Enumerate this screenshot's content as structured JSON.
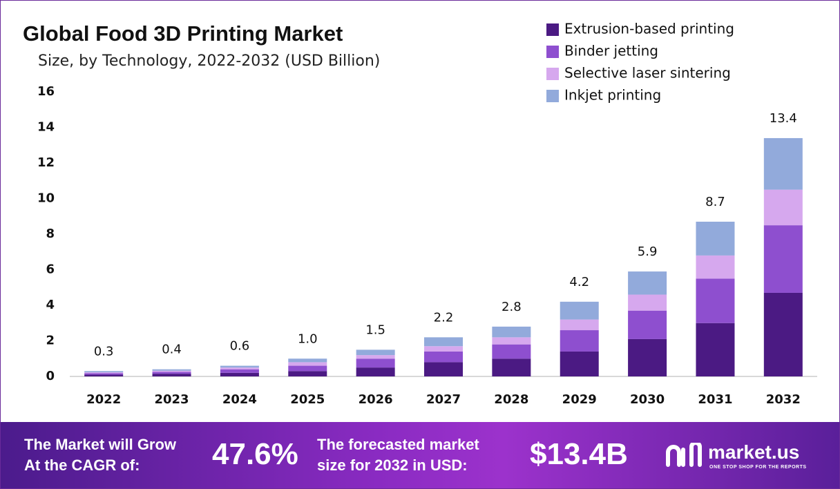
{
  "chart_data": {
    "type": "stacked_bar",
    "title": "Global Food 3D Printing Market",
    "subtitle": "Size, by Technology, 2022-2032 (USD Billion)",
    "categories": [
      "2022",
      "2023",
      "2024",
      "2025",
      "2026",
      "2027",
      "2028",
      "2029",
      "2030",
      "2031",
      "2032"
    ],
    "series": [
      {
        "name": "Extrusion-based printing",
        "color": "#4b1a83",
        "values": [
          0.1,
          0.15,
          0.2,
          0.3,
          0.5,
          0.8,
          1.0,
          1.4,
          2.1,
          3.0,
          4.7
        ]
      },
      {
        "name": "Binder jetting",
        "color": "#8e4fcf",
        "values": [
          0.08,
          0.1,
          0.2,
          0.3,
          0.5,
          0.6,
          0.8,
          1.2,
          1.6,
          2.5,
          3.8
        ]
      },
      {
        "name": "Selective laser sintering",
        "color": "#d6a8ee",
        "values": [
          0.05,
          0.07,
          0.1,
          0.2,
          0.2,
          0.3,
          0.4,
          0.6,
          0.9,
          1.3,
          2.0
        ]
      },
      {
        "name": "Inkjet printing",
        "color": "#92aadb",
        "values": [
          0.07,
          0.08,
          0.1,
          0.2,
          0.3,
          0.5,
          0.6,
          1.0,
          1.3,
          1.9,
          2.9
        ]
      }
    ],
    "totals": [
      0.3,
      0.4,
      0.6,
      1,
      1.5,
      2.2,
      2.8,
      4.2,
      5.9,
      8.7,
      13.4
    ],
    "total_labels": [
      "0.3",
      "0.4",
      "0.6",
      "1.0",
      "1.5",
      "2.2",
      "2.8",
      "4.2",
      "5.9",
      "8.7",
      "13.4"
    ],
    "ylim": [
      0,
      16
    ],
    "yticks": [
      0,
      2,
      4,
      6,
      8,
      10,
      12,
      14,
      16
    ],
    "grid": false,
    "legend": "upper right"
  },
  "footer": {
    "cagr_label": [
      "The Market will Grow",
      "At the CAGR of:"
    ],
    "cagr_value": "47.6%",
    "forecast_label": [
      "The forecasted market",
      "size for 2032 in USD:"
    ],
    "forecast_value": "$13.4B",
    "brand": "market.us",
    "tagline": "ONE STOP SHOP FOR THE REPORTS"
  }
}
